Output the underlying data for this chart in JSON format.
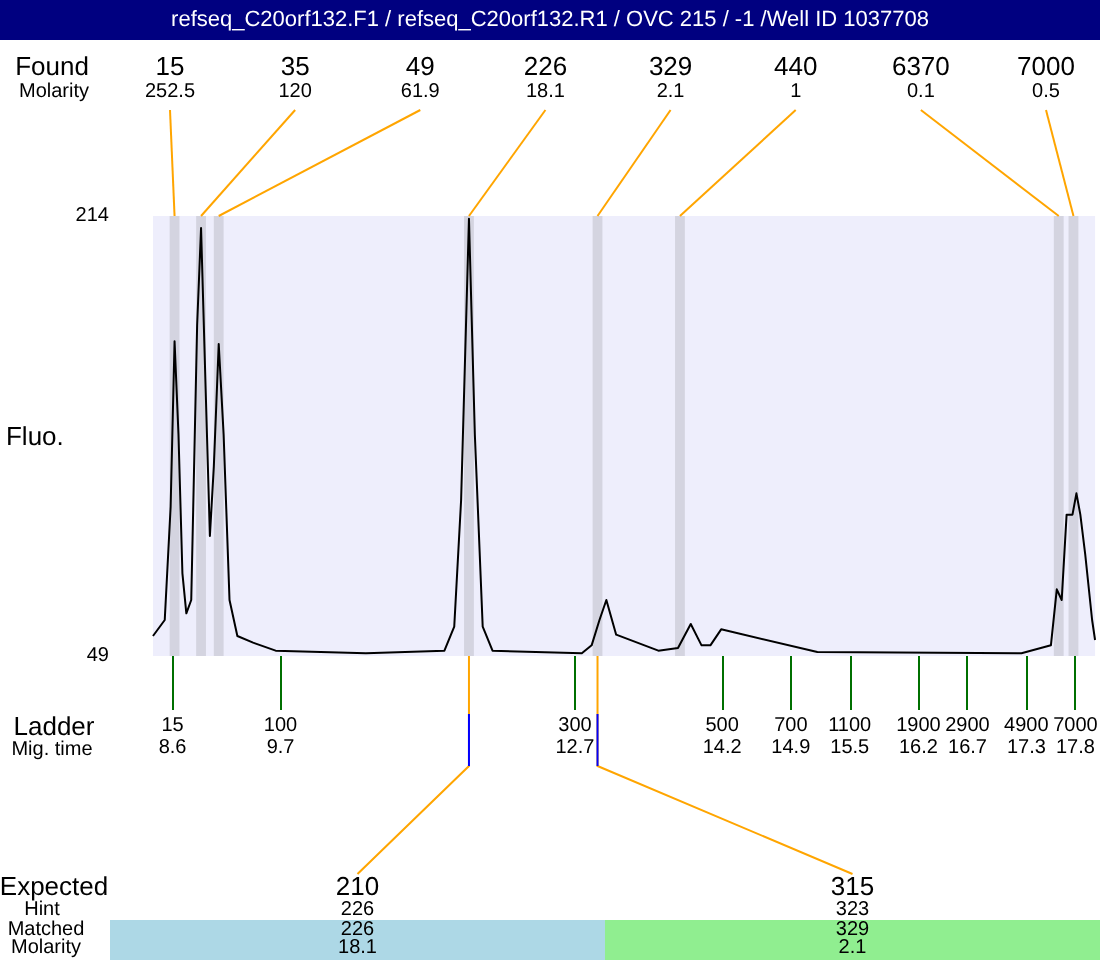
{
  "chart_data": {
    "type": "line",
    "title": "refseq_C20orf132.F1 / refseq_C20orf132.R1 / OVC 215 / -1 /Well ID 1037708",
    "ylabel": "Fluo.",
    "x": [
      8.4,
      8.52,
      8.58,
      8.62,
      8.66,
      8.7,
      8.74,
      8.79,
      8.85,
      8.89,
      8.94,
      8.98,
      9.02,
      9.07,
      9.12,
      9.18,
      9.26,
      9.42,
      9.65,
      10.57,
      11.37,
      11.47,
      11.54,
      11.62,
      11.68,
      11.76,
      11.86,
      12.77,
      12.87,
      12.95,
      13.02,
      13.12,
      13.55,
      13.75,
      13.88,
      13.99,
      14.08,
      14.19,
      15.17,
      17.25,
      17.55,
      17.61,
      17.66,
      17.71,
      17.77,
      17.81,
      17.85,
      17.9,
      17.97,
      18.0
    ],
    "values": [
      56.5,
      62.5,
      105,
      167,
      132,
      80,
      65,
      70,
      173,
      209.5,
      145,
      94,
      120,
      166,
      132,
      70,
      56.5,
      54,
      51,
      50,
      51,
      60,
      107.5,
      213,
      132,
      60,
      51,
      50,
      53,
      62.5,
      70,
      57,
      51,
      52,
      61,
      53,
      53,
      59,
      50.5,
      50,
      53,
      74,
      70,
      102,
      102,
      110,
      102,
      87,
      62.5,
      55
    ],
    "color": "#000000",
    "xlim": [
      8.4,
      18.0
    ],
    "xticks": [
      8.6,
      9.7,
      12.7,
      14.2,
      14.9,
      15.5,
      16.2,
      16.7,
      17.3,
      17.8
    ],
    "ylim": [
      49,
      214
    ],
    "yticks": [
      49,
      214
    ],
    "bands": [
      {
        "axis": "x",
        "from": 8.57,
        "to": 8.67,
        "label": "15",
        "color": "#d4d4e0"
      },
      {
        "axis": "x",
        "from": 8.84,
        "to": 8.94,
        "label": "35",
        "color": "#d4d4e0"
      },
      {
        "axis": "x",
        "from": 9.02,
        "to": 9.12,
        "label": "49",
        "color": "#d4d4e0"
      },
      {
        "axis": "x",
        "from": 11.57,
        "to": 11.67,
        "label": "226",
        "color": "#d4d4e0"
      },
      {
        "axis": "x",
        "from": 12.88,
        "to": 12.98,
        "label": "329",
        "color": "#d4d4e0"
      },
      {
        "axis": "x",
        "from": 13.72,
        "to": 13.82,
        "label": "440",
        "color": "#d4d4e0"
      },
      {
        "axis": "x",
        "from": 17.58,
        "to": 17.68,
        "label": "6370",
        "color": "#d4d4e0"
      },
      {
        "axis": "x",
        "from": 17.73,
        "to": 17.83,
        "label": "7000",
        "color": "#d4d4e0"
      }
    ],
    "annotations": [
      "Found",
      "Molarity",
      "Ladder",
      "Mig. time",
      "Expected",
      "Hint",
      "Matched",
      "Molarity",
      {
        "text": "252.5",
        "x": 8.62,
        "y": 214
      },
      {
        "text": "120",
        "x": 8.89,
        "y": 214
      },
      {
        "text": "61.9",
        "x": 9.07,
        "y": 214
      },
      {
        "text": "18.1",
        "x": 11.62,
        "y": 214
      },
      {
        "text": "2.1",
        "x": 12.93,
        "y": 214
      },
      {
        "text": "1",
        "x": 13.77,
        "y": 214
      },
      {
        "text": "0.1",
        "x": 17.63,
        "y": 214
      },
      {
        "text": "0.5",
        "x": 17.78,
        "y": 214
      },
      "15",
      "100",
      "300",
      "500",
      "700",
      "1100",
      "1900",
      "2900",
      "4900",
      "7000",
      {
        "text": "210",
        "x": 11.62,
        "y": 49
      },
      {
        "text": "315",
        "x": 12.93,
        "y": 49
      },
      "226",
      "323",
      "226",
      "329",
      "18.1",
      "2.1"
    ]
  }
}
